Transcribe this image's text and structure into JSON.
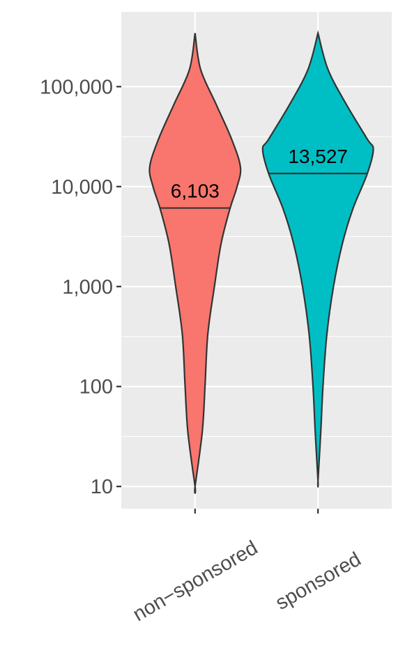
{
  "chart_data": {
    "type": "violin",
    "categories": [
      "non−sponsored",
      "sponsored"
    ],
    "series": [
      {
        "name": "non−sponsored",
        "color": "#F8766D",
        "values": [
          6103
        ],
        "value_labels": [
          "6,103"
        ],
        "violin": {
          "y": [
            343000,
            149000,
            66700,
            29900,
            15700,
            10000,
            5980,
            2680,
            1000,
            332,
            100,
            35,
            10
          ],
          "width": [
            0,
            0.1,
            0.38,
            0.66,
            0.82,
            0.76,
            0.63,
            0.47,
            0.35,
            0.23,
            0.18,
            0.13,
            0
          ]
        }
      },
      {
        "name": "sponsored",
        "color": "#00BFC4",
        "values": [
          13527
        ],
        "value_labels": [
          "13,527"
        ],
        "violin": {
          "y": [
            343000,
            149000,
            66700,
            29900,
            23500,
            13400,
            5980,
            2680,
            1000,
            332,
            100,
            35,
            11.4
          ],
          "width": [
            0,
            0.18,
            0.51,
            0.89,
            1.0,
            0.89,
            0.63,
            0.44,
            0.28,
            0.16,
            0.09,
            0.05,
            0
          ]
        }
      }
    ],
    "log_y": true,
    "ylim": [
      6,
      560000
    ],
    "yticks": [
      {
        "value": 10,
        "label": "10"
      },
      {
        "value": 100,
        "label": "100"
      },
      {
        "value": 1000,
        "label": "1,000"
      },
      {
        "value": 10000,
        "label": "10,000"
      },
      {
        "value": 100000,
        "label": "100,000"
      }
    ],
    "grid": true
  }
}
